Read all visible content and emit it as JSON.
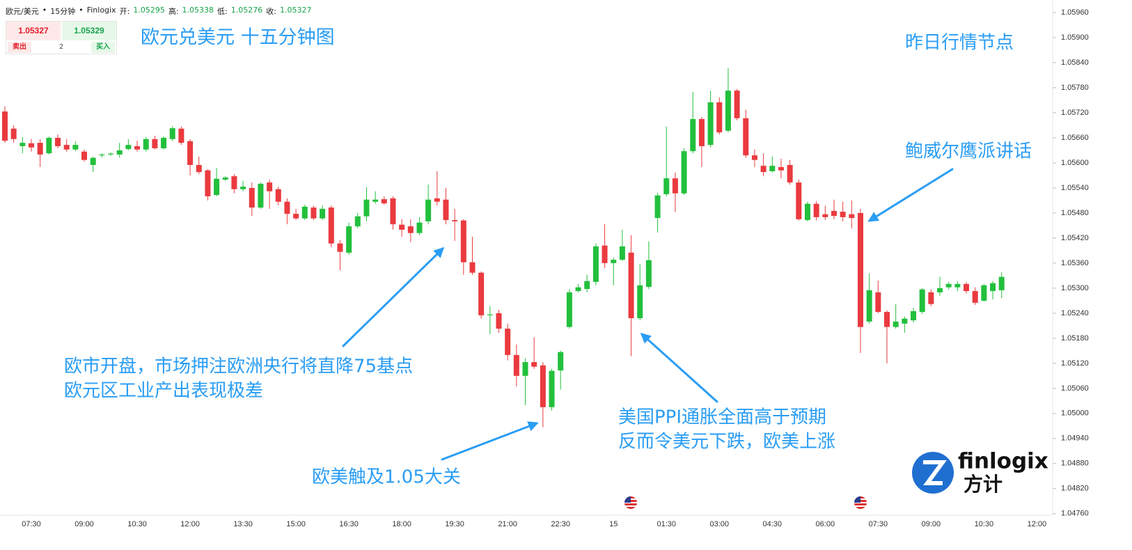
{
  "header": {
    "symbol": "欧元/美元",
    "separator": "•",
    "interval": "15分钟",
    "source": "Finlogix",
    "open_label": "开:",
    "open": "1.05295",
    "high_label": "高:",
    "high": "1.05338",
    "low_label": "低:",
    "low": "1.05276",
    "close_label": "收:",
    "close": "1.05327"
  },
  "quote": {
    "bid": "1.05327",
    "ask": "1.05329",
    "sell": "卖出",
    "quantity": "2",
    "buy": "买入"
  },
  "logo": {
    "name": "finlogix",
    "name_cn": "方计"
  },
  "chart_data": {
    "type": "candlestick",
    "title": "欧元兑美元 十五分钟图",
    "annotations": [
      {
        "lines": [
          "昨日行情节点"
        ]
      },
      {
        "lines": [
          "鲍威尔鹰派讲话"
        ]
      },
      {
        "lines": [
          "欧市开盘，市场押注欧洲央行将直降75基点",
          "欧元区工业产出表现极差"
        ]
      },
      {
        "lines": [
          "欧美触及1.05大关"
        ]
      },
      {
        "lines": [
          "美国PPI通胀全面高于预期",
          "反而令美元下跌，欧美上涨"
        ]
      }
    ],
    "up_color": "#22c03c",
    "down_color": "#ea3a3f",
    "ylim": [
      1.04743,
      1.0599
    ],
    "yticks": [
      {
        "value": 1.0476,
        "label": "1.04760"
      },
      {
        "value": 1.0482,
        "label": "1.04820"
      },
      {
        "value": 1.0488,
        "label": "1.04880"
      },
      {
        "value": 1.0494,
        "label": "1.04940"
      },
      {
        "value": 1.05,
        "label": "1.05000"
      },
      {
        "value": 1.0506,
        "label": "1.05060"
      },
      {
        "value": 1.0512,
        "label": "1.05120"
      },
      {
        "value": 1.0518,
        "label": "1.05180"
      },
      {
        "value": 1.0524,
        "label": "1.05240"
      },
      {
        "value": 1.053,
        "label": "1.05300"
      },
      {
        "value": 1.0536,
        "label": "1.05360"
      },
      {
        "value": 1.0542,
        "label": "1.05420"
      },
      {
        "value": 1.0548,
        "label": "1.05480"
      },
      {
        "value": 1.0554,
        "label": "1.05540"
      },
      {
        "value": 1.056,
        "label": "1.05600"
      },
      {
        "value": 1.0566,
        "label": "1.05660"
      },
      {
        "value": 1.0572,
        "label": "1.05720"
      },
      {
        "value": 1.0578,
        "label": "1.05780"
      },
      {
        "value": 1.0584,
        "label": "1.05840"
      },
      {
        "value": 1.059,
        "label": "1.05900"
      },
      {
        "value": 1.0596,
        "label": "1.05960"
      }
    ],
    "categories": [
      null,
      null,
      null,
      "07:30",
      null,
      null,
      null,
      null,
      null,
      "09:00",
      null,
      null,
      null,
      null,
      null,
      "10:30",
      null,
      null,
      null,
      null,
      null,
      "12:00",
      null,
      null,
      null,
      null,
      null,
      "13:30",
      null,
      null,
      null,
      null,
      null,
      "15:00",
      null,
      null,
      null,
      null,
      null,
      "16:30",
      null,
      null,
      null,
      null,
      null,
      "18:00",
      null,
      null,
      null,
      null,
      null,
      "19:30",
      null,
      null,
      null,
      null,
      null,
      "21:00",
      null,
      null,
      null,
      null,
      null,
      "22:30",
      null,
      null,
      null,
      null,
      null,
      "15",
      null,
      null,
      null,
      null,
      null,
      "01:30",
      null,
      null,
      null,
      null,
      null,
      "03:00",
      null,
      null,
      null,
      null,
      null,
      "04:30",
      null,
      null,
      null,
      null,
      null,
      "06:00",
      null,
      null,
      null,
      null,
      null,
      "07:30",
      null,
      null,
      null,
      null,
      null,
      "09:00",
      null,
      null,
      null,
      null,
      null,
      "10:30",
      null,
      null,
      null,
      null,
      null,
      "12:00"
    ],
    "open": [
      1.05723,
      1.05682,
      1.0564,
      1.05647,
      1.05648,
      1.05623,
      1.0566,
      1.05643,
      1.05632,
      1.05627,
      1.05595,
      1.05618,
      1.0562,
      1.0562,
      1.05633,
      1.0564,
      1.05632,
      1.05657,
      1.05635,
      1.05657,
      1.05682,
      1.05652,
      1.05595,
      1.05582,
      1.05523,
      1.0556,
      1.05568,
      1.05537,
      1.0554,
      1.05493,
      1.05553,
      1.05537,
      1.05507,
      1.05478,
      1.05467,
      1.05493,
      1.05467,
      1.05493,
      1.05407,
      1.05385,
      1.05448,
      1.05472,
      1.05507,
      1.05513,
      1.05515,
      1.05452,
      1.05448,
      1.05432,
      1.0546,
      1.05515,
      1.05512,
      1.05463,
      1.05462,
      1.05362,
      1.05337,
      1.05235,
      1.0524,
      1.05203,
      1.0514,
      1.0509,
      1.05123,
      1.05115,
      1.05015,
      1.05103,
      1.05207,
      1.05293,
      1.05298,
      1.05315,
      1.05402,
      1.0536,
      1.05368,
      1.05385,
      1.05228,
      1.05303,
      1.05468,
      1.05525,
      1.05563,
      1.05527,
      1.05628,
      1.05705,
      1.05643,
      1.05745,
      1.05677,
      1.05773,
      1.05707,
      1.05618,
      1.05593,
      1.0558,
      1.0559,
      1.05595,
      1.05553,
      1.05463,
      1.05502,
      1.05477,
      1.05485,
      1.05483,
      1.05477,
      1.0548,
      1.0522,
      1.0529,
      1.05243,
      1.05207,
      1.05215,
      1.05223,
      1.05243,
      1.0529,
      1.0529,
      1.05302,
      1.05302,
      1.0531,
      1.05293,
      1.0527,
      1.05293,
      1.05295,
      null,
      null,
      null,
      null
    ],
    "high": [
      1.05735,
      1.0569,
      1.05662,
      1.05657,
      1.05657,
      1.05663,
      1.05668,
      1.05657,
      1.05652,
      1.05632,
      1.05615,
      1.05623,
      1.05625,
      1.05648,
      1.05657,
      1.05653,
      1.05662,
      1.05665,
      1.05663,
      1.05688,
      1.05687,
      1.05657,
      1.05615,
      1.05585,
      1.05588,
      1.05568,
      1.05573,
      1.05557,
      1.05553,
      1.05553,
      1.0556,
      1.05543,
      1.05515,
      1.0549,
      1.055,
      1.05497,
      1.05498,
      1.05498,
      1.05415,
      1.05457,
      1.0548,
      1.05542,
      1.05532,
      1.0552,
      1.0552,
      1.05465,
      1.05465,
      1.0547,
      1.05548,
      1.0558,
      1.0554,
      1.0549,
      1.05465,
      1.05423,
      1.0534,
      1.05257,
      1.05248,
      1.05215,
      1.05165,
      1.05132,
      1.05182,
      1.05123,
      1.05107,
      1.0515,
      1.05298,
      1.0531,
      1.05332,
      1.05407,
      1.05453,
      1.05373,
      1.0544,
      1.05427,
      1.05357,
      1.05412,
      1.05528,
      1.05687,
      1.05577,
      1.05635,
      1.0577,
      1.0571,
      1.05773,
      1.05757,
      1.05827,
      1.05777,
      1.05727,
      1.05632,
      1.05623,
      1.05615,
      1.0561,
      1.05607,
      1.0556,
      1.05507,
      1.05508,
      1.05497,
      1.05512,
      1.05507,
      1.0551,
      1.0549,
      1.05335,
      1.05318,
      1.05247,
      1.05262,
      1.05232,
      1.05253,
      1.053,
      1.05297,
      1.05327,
      1.05315,
      1.05317,
      1.05315,
      1.05302,
      1.0531,
      1.05317,
      1.05338,
      null,
      null,
      null,
      null
    ],
    "low": [
      1.05648,
      1.05648,
      1.05623,
      1.05627,
      1.0559,
      1.0562,
      1.05635,
      1.05627,
      1.05628,
      1.05603,
      1.05578,
      1.05613,
      1.05617,
      1.05613,
      1.0563,
      1.05627,
      1.05627,
      1.05632,
      1.05632,
      1.05652,
      1.05643,
      1.0557,
      1.05573,
      1.0551,
      1.0552,
      1.05557,
      1.05527,
      1.05532,
      1.05473,
      1.0549,
      1.0549,
      1.05498,
      1.05453,
      1.05463,
      1.05463,
      1.05463,
      1.05463,
      1.05398,
      1.05343,
      1.0538,
      1.05443,
      1.0546,
      1.05502,
      1.055,
      1.0544,
      1.05423,
      1.0541,
      1.05427,
      1.05453,
      1.05498,
      1.05453,
      1.05413,
      1.05332,
      1.05332,
      1.05227,
      1.0519,
      1.05193,
      1.05127,
      1.05065,
      1.0502,
      1.05107,
      1.04967,
      1.05007,
      1.05057,
      1.05203,
      1.0529,
      1.0529,
      1.05307,
      1.05348,
      1.05307,
      1.05365,
      1.05137,
      1.05223,
      1.05298,
      1.05433,
      1.0552,
      1.05482,
      1.05523,
      1.05623,
      1.0559,
      1.05637,
      1.05668,
      1.05673,
      1.05702,
      1.05612,
      1.0559,
      1.05568,
      1.05577,
      1.05563,
      1.05548,
      1.05462,
      1.0546,
      1.05462,
      1.05463,
      1.05465,
      1.0546,
      1.05443,
      1.05145,
      1.05215,
      1.0524,
      1.0512,
      1.05203,
      1.05193,
      1.05218,
      1.05238,
      1.05257,
      1.05282,
      1.05297,
      1.05293,
      1.05287,
      1.0526,
      1.05268,
      1.05273,
      1.05276,
      null,
      null,
      null,
      null
    ],
    "close": [
      1.05653,
      1.05657,
      1.05648,
      1.05637,
      1.0562,
      1.0566,
      1.0564,
      1.05632,
      1.05643,
      1.05607,
      1.05612,
      1.0562,
      1.05622,
      1.0563,
      1.05643,
      1.05632,
      1.05657,
      1.05635,
      1.0566,
      1.05683,
      1.05648,
      1.05595,
      1.05578,
      1.0552,
      1.05562,
      1.05565,
      1.05537,
      1.05543,
      1.05493,
      1.0555,
      1.05532,
      1.05507,
      1.05478,
      1.05467,
      1.05495,
      1.05467,
      1.0549,
      1.05407,
      1.05387,
      1.05448,
      1.05472,
      1.05512,
      1.05512,
      1.05503,
      1.05453,
      1.0544,
      1.05432,
      1.05457,
      1.05512,
      1.05507,
      1.05463,
      1.0546,
      1.05362,
      1.05337,
      1.05235,
      1.05237,
      1.05203,
      1.0514,
      1.0509,
      1.05123,
      1.05112,
      1.05015,
      1.05102,
      1.05147,
      1.0529,
      1.05302,
      1.05317,
      1.054,
      1.0536,
      1.05368,
      1.054,
      1.05228,
      1.05307,
      1.05367,
      1.05522,
      1.05563,
      1.05527,
      1.05628,
      1.05705,
      1.0564,
      1.05745,
      1.05673,
      1.05773,
      1.05707,
      1.05618,
      1.05607,
      1.05578,
      1.05593,
      1.05582,
      1.05553,
      1.05465,
      1.05502,
      1.0547,
      1.0547,
      1.05473,
      1.0547,
      1.05468,
      1.05207,
      1.05295,
      1.05243,
      1.05207,
      1.0522,
      1.05227,
      1.05245,
      1.05297,
      1.05262,
      1.053,
      1.0531,
      1.0531,
      1.05293,
      1.05265,
      1.05307,
      1.05312,
      1.05327,
      null,
      null,
      null,
      null
    ]
  }
}
